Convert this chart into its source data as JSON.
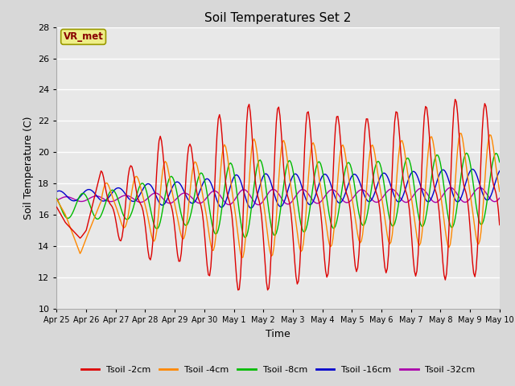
{
  "title": "Soil Temperatures Set 2",
  "xlabel": "Time",
  "ylabel": "Soil Temperature (C)",
  "ylim": [
    10,
    28
  ],
  "yticks": [
    10,
    12,
    14,
    16,
    18,
    20,
    22,
    24,
    26,
    28
  ],
  "xtick_labels": [
    "Apr 25",
    "Apr 26",
    "Apr 27",
    "Apr 28",
    "Apr 29",
    "Apr 30",
    "May 1",
    "May 2",
    "May 3",
    "May 4",
    "May 5",
    "May 6",
    "May 7",
    "May 8",
    "May 9",
    "May 10"
  ],
  "legend_labels": [
    "Tsoil -2cm",
    "Tsoil -4cm",
    "Tsoil -8cm",
    "Tsoil -16cm",
    "Tsoil -32cm"
  ],
  "legend_colors": [
    "#dd0000",
    "#ff8800",
    "#00bb00",
    "#0000cc",
    "#aa00aa"
  ],
  "annotation_text": "VR_met",
  "annotation_color": "#880000",
  "annotation_bg": "#eeee88",
  "annotation_edge": "#999900",
  "fig_bg": "#d8d8d8",
  "plot_bg": "#e8e8e8",
  "grid_color": "#ffffff",
  "line_width": 1.0
}
